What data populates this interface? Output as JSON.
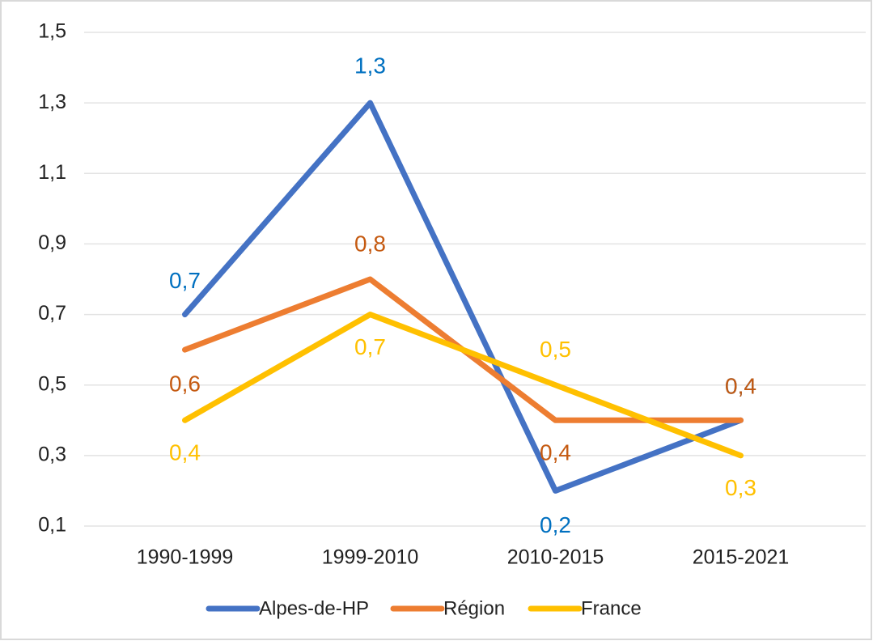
{
  "chart_data": {
    "type": "line",
    "categories": [
      "1990-1999",
      "1999-2010",
      "2010-2015",
      "2015-2021"
    ],
    "series": [
      {
        "name": "Alpes-de-HP",
        "color": "#4472c4",
        "label_color": "#0070c0",
        "values": [
          0.7,
          1.3,
          0.2,
          0.4
        ],
        "value_labels": [
          "0,7",
          "1,3",
          "0,2",
          "0,4"
        ]
      },
      {
        "name": "Région",
        "color": "#ed7d31",
        "label_color": "#c55a11",
        "values": [
          0.6,
          0.8,
          0.4,
          0.4
        ],
        "value_labels": [
          "0,6",
          "0,8",
          "0,4",
          "0,4"
        ]
      },
      {
        "name": "France",
        "color": "#ffc000",
        "label_color": "#ffc000",
        "values": [
          0.4,
          0.7,
          0.5,
          0.3
        ],
        "value_labels": [
          "0,4",
          "0,7",
          "0,5",
          "0,3"
        ]
      }
    ],
    "ylim": [
      0.1,
      1.5
    ],
    "yticks": [
      {
        "value": 0.1,
        "label": "0,1"
      },
      {
        "value": 0.3,
        "label": "0,3"
      },
      {
        "value": 0.5,
        "label": "0,5"
      },
      {
        "value": 0.7,
        "label": "0,7"
      },
      {
        "value": 0.9,
        "label": "0,9"
      },
      {
        "value": 1.1,
        "label": "1,1"
      },
      {
        "value": 1.3,
        "label": "1,3"
      },
      {
        "value": 1.5,
        "label": "1,5"
      }
    ],
    "grid": true,
    "legend": "bottom"
  }
}
